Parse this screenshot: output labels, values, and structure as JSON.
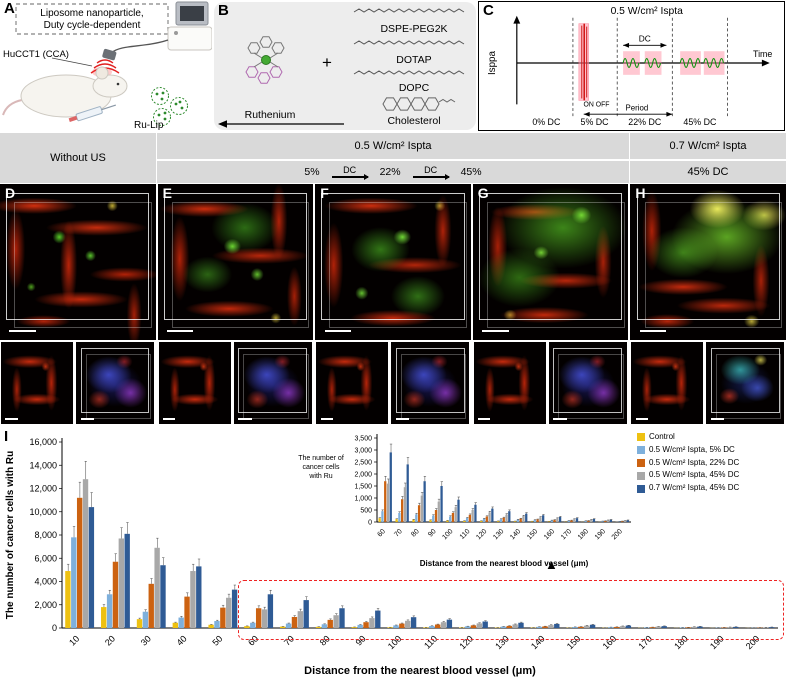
{
  "panels": {
    "a": {
      "label": "A",
      "box_line1": "Liposome nanoparticle,",
      "box_line2": "Duty cycle-dependent",
      "mouse_label": "HuCCT1 (CCA)",
      "lip_label": "Ru-Lip"
    },
    "b": {
      "label": "B",
      "ruthenium": "Ruthenium",
      "plus": "+",
      "lipid1": "DSPE-PEG2K",
      "lipid2": "DOTAP",
      "lipid3": "DOPC",
      "lipid4": "Cholesterol"
    },
    "c": {
      "label": "C",
      "title": "0.5 W/cm² Ispta",
      "yaxis": "Isppa",
      "xaxis": "Time",
      "dc": "DC",
      "on_off": "ON OFF",
      "period": "Period",
      "t0": "0% DC",
      "t1": "5% DC",
      "t2": "22% DC",
      "t3": "45% DC"
    }
  },
  "microscopy": {
    "header_without_us": "Without US",
    "header_05": "0.5 W/cm² Ispta",
    "header_07": "0.7 W/cm² Ispta",
    "dc5": "5%",
    "dc22": "22%",
    "dc45": "45%",
    "dc_arrow": "DC",
    "dc45_col": "45% DC",
    "letters": [
      "D",
      "E",
      "F",
      "G",
      "H"
    ]
  },
  "chart": {
    "label": "I"
  },
  "chart_data": {
    "type": "bar",
    "title": "",
    "xlabel": "Distance from the nearest blood vessel (μm)",
    "ylabel": "The number of cancer cells with Ru",
    "categories": [
      10,
      20,
      30,
      40,
      50,
      60,
      70,
      80,
      90,
      100,
      110,
      120,
      130,
      140,
      150,
      160,
      170,
      180,
      190,
      200
    ],
    "ylim": [
      0,
      16000
    ],
    "ytick_step": 2000,
    "legend_position": "inset-right",
    "grid": false,
    "error_fraction": 0.12,
    "series": [
      {
        "name": "Control",
        "color": "#EEC111",
        "values": [
          4900,
          1800,
          760,
          450,
          280,
          160,
          120,
          100,
          80,
          60,
          50,
          45,
          40,
          35,
          30,
          25,
          20,
          15,
          12,
          10
        ]
      },
      {
        "name": "0.5 W/cm² Ispta, 5% DC",
        "color": "#7EB0DC",
        "values": [
          7800,
          2900,
          1400,
          900,
          600,
          450,
          380,
          320,
          270,
          230,
          170,
          140,
          120,
          100,
          85,
          70,
          55,
          45,
          35,
          25
        ]
      },
      {
        "name": "0.5 W/cm² Ispta, 22% DC",
        "color": "#CC6211",
        "values": [
          11200,
          5700,
          3800,
          2700,
          1750,
          1700,
          950,
          700,
          500,
          380,
          300,
          230,
          180,
          140,
          110,
          90,
          70,
          55,
          45,
          35
        ]
      },
      {
        "name": "0.5 W/cm² Ispta, 45% DC",
        "color": "#A8A8A8",
        "values": [
          12800,
          7700,
          6900,
          4900,
          2600,
          1600,
          1450,
          1100,
          850,
          620,
          500,
          400,
          310,
          250,
          200,
          155,
          120,
          95,
          75,
          55
        ]
      },
      {
        "name": "0.7 W/cm² Ispta, 45% DC",
        "color": "#2F5B95",
        "values": [
          10400,
          8100,
          5400,
          5300,
          3300,
          2900,
          2400,
          1700,
          1500,
          930,
          720,
          560,
          450,
          350,
          280,
          210,
          160,
          125,
          95,
          75
        ]
      }
    ],
    "inset": {
      "start_category": 60,
      "ylim": [
        0,
        3500
      ],
      "ytick_step": 500,
      "xlabel": "Distance from the nearest blood vessel (μm)",
      "ylabel": "The number of cancer cells with Ru"
    }
  }
}
